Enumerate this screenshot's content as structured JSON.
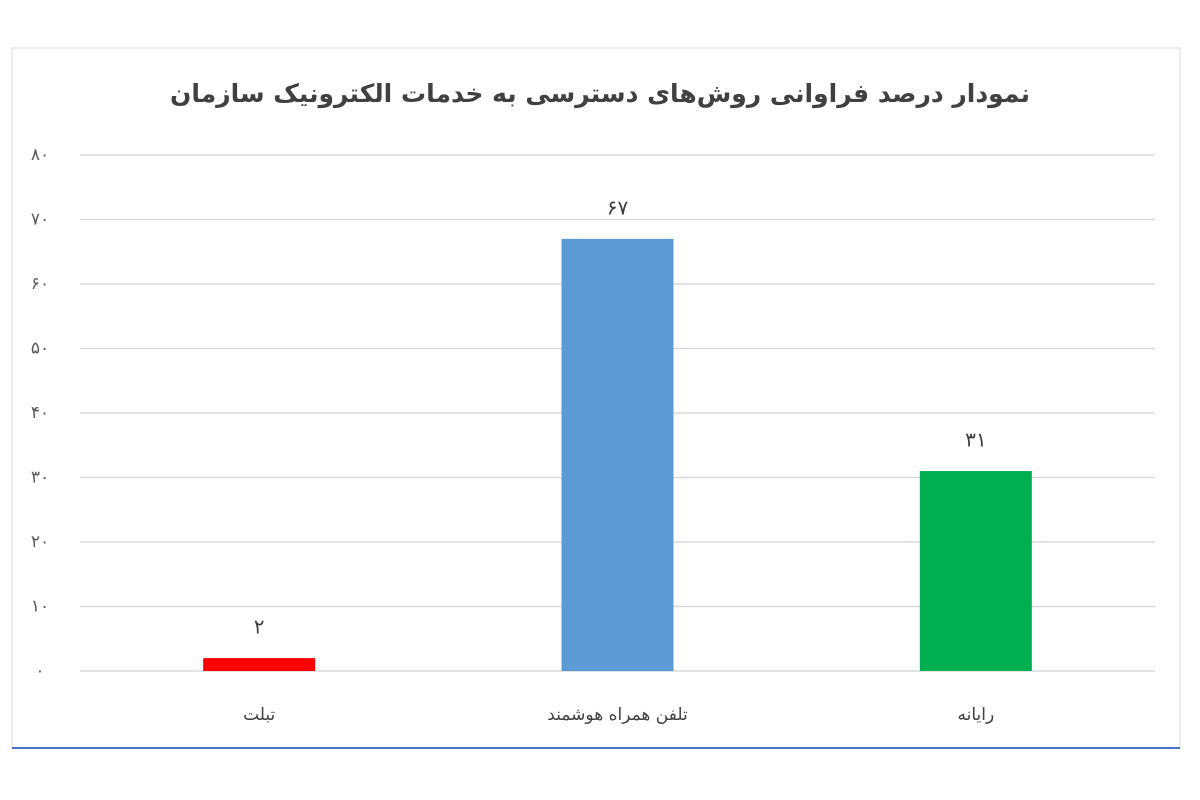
{
  "chart_data": {
    "type": "bar",
    "title": "نمودار درصد فراوانی روش‌های دسترسی به خدمات الکترونیک سازمان",
    "categories": [
      "تبلت",
      "تلفن همراه هوشمند",
      "رایانه"
    ],
    "values": [
      2,
      67,
      31
    ],
    "value_labels": [
      "۲",
      "۶۷",
      "۳۱"
    ],
    "colors": [
      "#ff0000",
      "#5b9bd5",
      "#00b050"
    ],
    "ylim": [
      0,
      80
    ],
    "yticks": [
      {
        "value": 0,
        "label": "۰"
      },
      {
        "value": 10,
        "label": "۱۰"
      },
      {
        "value": 20,
        "label": "۲۰"
      },
      {
        "value": 30,
        "label": "۳۰"
      },
      {
        "value": 40,
        "label": "۴۰"
      },
      {
        "value": 50,
        "label": "۵۰"
      },
      {
        "value": 60,
        "label": "۶۰"
      },
      {
        "value": 70,
        "label": "۷۰"
      },
      {
        "value": 80,
        "label": "۸۰"
      }
    ],
    "grid": true
  }
}
